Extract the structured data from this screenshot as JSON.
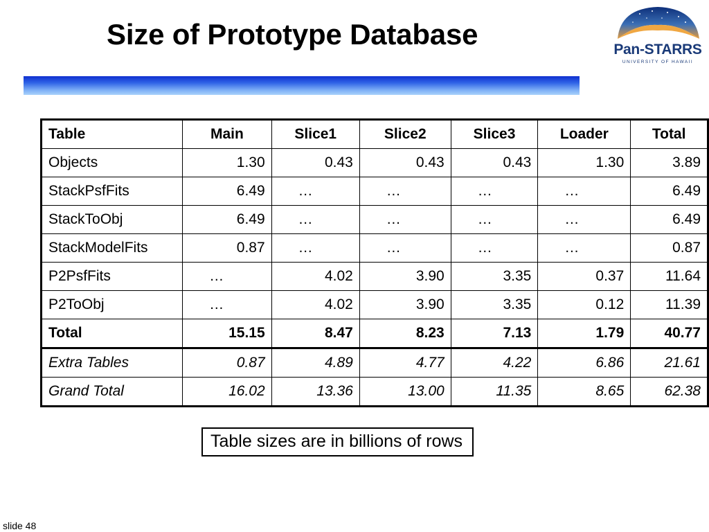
{
  "slide": {
    "title": "Size of Prototype Database",
    "note": "Table sizes are in billions of rows",
    "slide_number": "slide 48"
  },
  "logo": {
    "name": "Pan-STARRS",
    "subtitle": "UNIVERSITY OF HAWAII"
  },
  "table": {
    "headers": [
      "Table",
      "Main",
      "Slice1",
      "Slice2",
      "Slice3",
      "Loader",
      "Total"
    ],
    "rows": [
      [
        "Objects",
        "1.30",
        "0.43",
        "0.43",
        "0.43",
        "1.30",
        "3.89"
      ],
      [
        "StackPsfFits",
        "6.49",
        "…",
        "…",
        "…",
        "…",
        "6.49"
      ],
      [
        "StackToObj",
        "6.49",
        "…",
        "…",
        "…",
        "…",
        "6.49"
      ],
      [
        "StackModelFits",
        "0.87",
        "…",
        "…",
        "…",
        "…",
        "0.87"
      ],
      [
        "P2PsfFits",
        "…",
        "4.02",
        "3.90",
        "3.35",
        "0.37",
        "11.64"
      ],
      [
        "P2ToObj",
        "…",
        "4.02",
        "3.90",
        "3.35",
        "0.12",
        "11.39"
      ],
      [
        "Total",
        "15.15",
        "8.47",
        "8.23",
        "7.13",
        "1.79",
        "40.77"
      ],
      [
        "Extra Tables",
        "0.87",
        "4.89",
        "4.77",
        "4.22",
        "6.86",
        "21.61"
      ],
      [
        "Grand Total",
        "16.02",
        "13.36",
        "13.00",
        "11.35",
        "8.65",
        "62.38"
      ]
    ]
  }
}
